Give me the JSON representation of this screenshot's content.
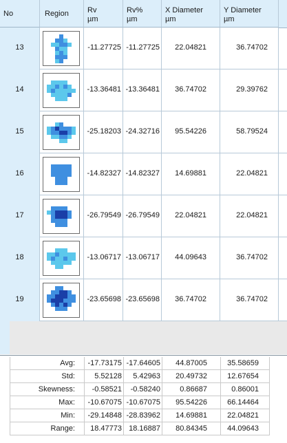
{
  "columns": {
    "no": "No",
    "region": "Region",
    "rv": "Rv\nµm",
    "rv_pct": "Rv%\nµm",
    "x_diameter": "X Diameter\nµm",
    "y_diameter": "Y Diameter\nµm"
  },
  "rows": [
    {
      "no": "13",
      "rv": "-11.27725",
      "rv_pct": "-11.27725",
      "x_diameter": "22.04821",
      "y_diameter": "36.74702",
      "thumbnail": "region-13"
    },
    {
      "no": "14",
      "rv": "-13.36481",
      "rv_pct": "-13.36481",
      "x_diameter": "36.74702",
      "y_diameter": "29.39762",
      "thumbnail": "region-14"
    },
    {
      "no": "15",
      "rv": "-25.18203",
      "rv_pct": "-24.32716",
      "x_diameter": "95.54226",
      "y_diameter": "58.79524",
      "thumbnail": "region-15"
    },
    {
      "no": "16",
      "rv": "-14.82327",
      "rv_pct": "-14.82327",
      "x_diameter": "14.69881",
      "y_diameter": "22.04821",
      "thumbnail": "region-16"
    },
    {
      "no": "17",
      "rv": "-26.79549",
      "rv_pct": "-26.79549",
      "x_diameter": "22.04821",
      "y_diameter": "22.04821",
      "thumbnail": "region-17"
    },
    {
      "no": "18",
      "rv": "-13.06717",
      "rv_pct": "-13.06717",
      "x_diameter": "44.09643",
      "y_diameter": "36.74702",
      "thumbnail": "region-18"
    },
    {
      "no": "19",
      "rv": "-23.65698",
      "rv_pct": "-23.65698",
      "x_diameter": "36.74702",
      "y_diameter": "36.74702",
      "thumbnail": "region-19"
    }
  ],
  "summary": [
    {
      "label": "Avg:",
      "rv": "-17.73175",
      "rv_pct": "-17.64605",
      "x_diameter": "44.87005",
      "y_diameter": "35.58659"
    },
    {
      "label": "Std:",
      "rv": "5.52128",
      "rv_pct": "5.42963",
      "x_diameter": "20.49732",
      "y_diameter": "12.67654"
    },
    {
      "label": "Skewness:",
      "rv": "-0.58521",
      "rv_pct": "-0.58240",
      "x_diameter": "0.86687",
      "y_diameter": "0.86001"
    },
    {
      "label": "Max:",
      "rv": "-10.67075",
      "rv_pct": "-10.67075",
      "x_diameter": "95.54226",
      "y_diameter": "66.14464"
    },
    {
      "label": "Min:",
      "rv": "-29.14848",
      "rv_pct": "-28.83962",
      "x_diameter": "14.69881",
      "y_diameter": "22.04821"
    },
    {
      "label": "Range:",
      "rv": "18.47773",
      "rv_pct": "18.16887",
      "x_diameter": "80.84345",
      "y_diameter": "44.09643"
    }
  ],
  "colors": {
    "header_bg": "#dceefa",
    "grid_line": "#b7c9d8",
    "empty_area": "#e9e9e9",
    "region_light": "#5cc8ec",
    "region_mid": "#3f8fe0",
    "region_dark": "#1a3fa8"
  }
}
